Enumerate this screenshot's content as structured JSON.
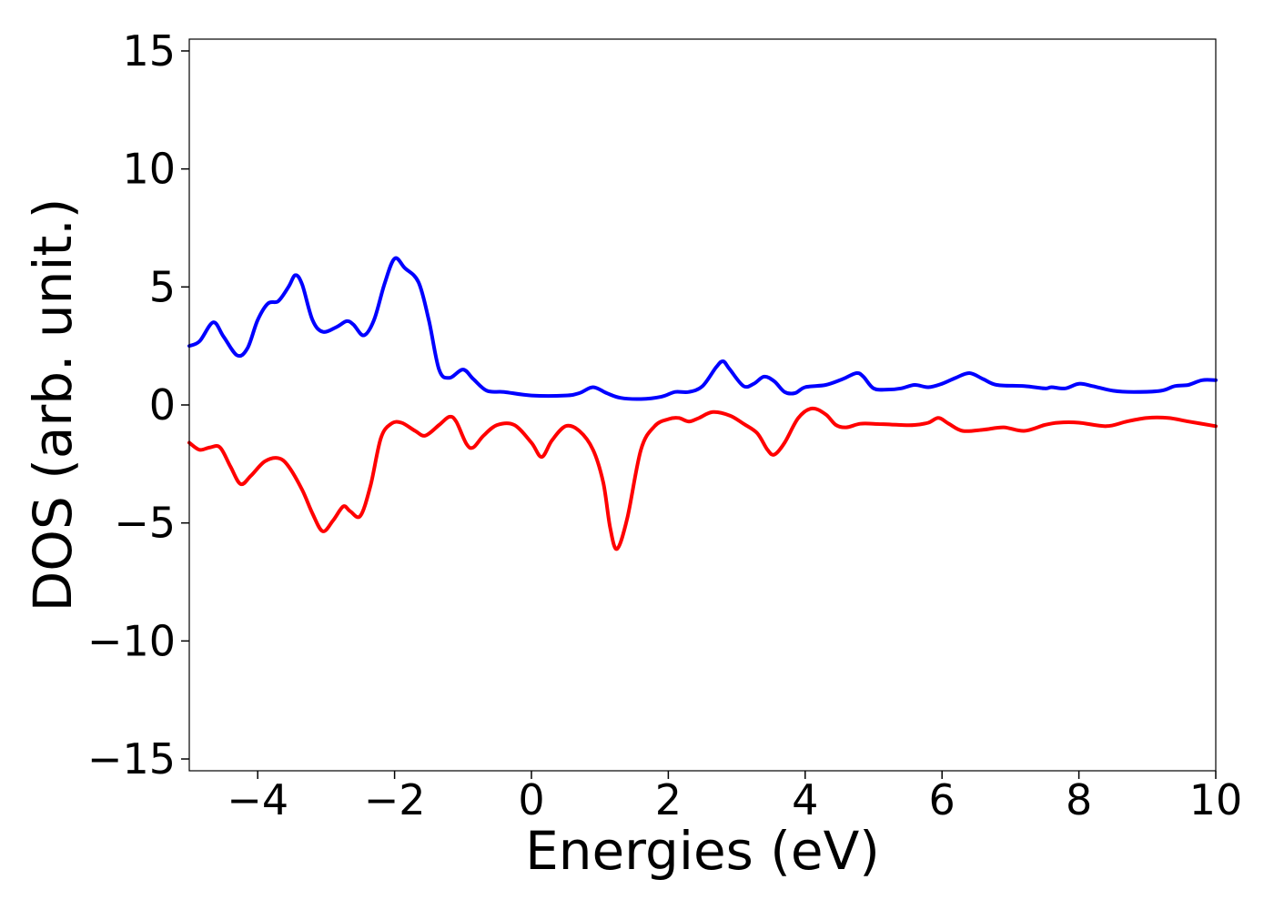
{
  "chart_data": {
    "type": "line",
    "title": "",
    "xlabel": "Energies (eV)",
    "ylabel": "DOS (arb. unit.)",
    "xlim": [
      -5,
      10
    ],
    "ylim": [
      -15.5,
      15.5
    ],
    "xticks": [
      -4,
      -2,
      0,
      2,
      4,
      6,
      8,
      10
    ],
    "yticks": [
      -15,
      -10,
      -5,
      0,
      5,
      10,
      15
    ],
    "grid": false,
    "legend": "none",
    "series": [
      {
        "color": "#0000ff",
        "points": [
          [
            -5.0,
            2.5
          ],
          [
            -4.85,
            2.7
          ],
          [
            -4.65,
            3.5
          ],
          [
            -4.5,
            2.9
          ],
          [
            -4.3,
            2.1
          ],
          [
            -4.15,
            2.4
          ],
          [
            -4.0,
            3.6
          ],
          [
            -3.85,
            4.3
          ],
          [
            -3.7,
            4.4
          ],
          [
            -3.55,
            5.0
          ],
          [
            -3.45,
            5.5
          ],
          [
            -3.35,
            5.1
          ],
          [
            -3.2,
            3.6
          ],
          [
            -3.05,
            3.1
          ],
          [
            -2.85,
            3.3
          ],
          [
            -2.7,
            3.55
          ],
          [
            -2.6,
            3.4
          ],
          [
            -2.45,
            2.95
          ],
          [
            -2.3,
            3.6
          ],
          [
            -2.15,
            5.1
          ],
          [
            -2.0,
            6.2
          ],
          [
            -1.85,
            5.8
          ],
          [
            -1.65,
            5.2
          ],
          [
            -1.5,
            3.6
          ],
          [
            -1.35,
            1.5
          ],
          [
            -1.2,
            1.15
          ],
          [
            -1.0,
            1.5
          ],
          [
            -0.85,
            1.1
          ],
          [
            -0.65,
            0.6
          ],
          [
            -0.4,
            0.55
          ],
          [
            0.0,
            0.4
          ],
          [
            0.5,
            0.4
          ],
          [
            0.7,
            0.5
          ],
          [
            0.9,
            0.75
          ],
          [
            1.1,
            0.5
          ],
          [
            1.3,
            0.3
          ],
          [
            1.6,
            0.25
          ],
          [
            1.9,
            0.35
          ],
          [
            2.1,
            0.55
          ],
          [
            2.3,
            0.55
          ],
          [
            2.5,
            0.8
          ],
          [
            2.7,
            1.6
          ],
          [
            2.8,
            1.85
          ],
          [
            2.9,
            1.5
          ],
          [
            3.1,
            0.8
          ],
          [
            3.25,
            0.9
          ],
          [
            3.4,
            1.2
          ],
          [
            3.55,
            1.0
          ],
          [
            3.7,
            0.55
          ],
          [
            3.85,
            0.5
          ],
          [
            4.0,
            0.75
          ],
          [
            4.3,
            0.85
          ],
          [
            4.55,
            1.1
          ],
          [
            4.75,
            1.35
          ],
          [
            4.85,
            1.2
          ],
          [
            5.0,
            0.7
          ],
          [
            5.2,
            0.65
          ],
          [
            5.4,
            0.7
          ],
          [
            5.6,
            0.85
          ],
          [
            5.8,
            0.75
          ],
          [
            6.0,
            0.9
          ],
          [
            6.2,
            1.15
          ],
          [
            6.4,
            1.35
          ],
          [
            6.6,
            1.1
          ],
          [
            6.8,
            0.85
          ],
          [
            7.2,
            0.8
          ],
          [
            7.5,
            0.7
          ],
          [
            7.6,
            0.75
          ],
          [
            7.8,
            0.7
          ],
          [
            8.0,
            0.9
          ],
          [
            8.2,
            0.8
          ],
          [
            8.5,
            0.6
          ],
          [
            8.8,
            0.55
          ],
          [
            9.2,
            0.6
          ],
          [
            9.4,
            0.8
          ],
          [
            9.6,
            0.85
          ],
          [
            9.8,
            1.05
          ],
          [
            10.0,
            1.05
          ]
        ]
      },
      {
        "color": "#ff0000",
        "points": [
          [
            -5.0,
            -1.6
          ],
          [
            -4.85,
            -1.9
          ],
          [
            -4.7,
            -1.8
          ],
          [
            -4.55,
            -1.8
          ],
          [
            -4.4,
            -2.6
          ],
          [
            -4.25,
            -3.35
          ],
          [
            -4.1,
            -3.0
          ],
          [
            -3.9,
            -2.4
          ],
          [
            -3.7,
            -2.25
          ],
          [
            -3.55,
            -2.6
          ],
          [
            -3.35,
            -3.6
          ],
          [
            -3.2,
            -4.6
          ],
          [
            -3.05,
            -5.35
          ],
          [
            -2.9,
            -4.9
          ],
          [
            -2.75,
            -4.3
          ],
          [
            -2.65,
            -4.5
          ],
          [
            -2.5,
            -4.7
          ],
          [
            -2.35,
            -3.4
          ],
          [
            -2.2,
            -1.4
          ],
          [
            -2.05,
            -0.8
          ],
          [
            -1.9,
            -0.75
          ],
          [
            -1.7,
            -1.1
          ],
          [
            -1.55,
            -1.3
          ],
          [
            -1.35,
            -0.85
          ],
          [
            -1.2,
            -0.5
          ],
          [
            -1.1,
            -0.7
          ],
          [
            -0.95,
            -1.65
          ],
          [
            -0.85,
            -1.8
          ],
          [
            -0.7,
            -1.3
          ],
          [
            -0.5,
            -0.85
          ],
          [
            -0.25,
            -0.85
          ],
          [
            0.0,
            -1.6
          ],
          [
            0.15,
            -2.2
          ],
          [
            0.3,
            -1.5
          ],
          [
            0.5,
            -0.9
          ],
          [
            0.7,
            -1.1
          ],
          [
            0.9,
            -1.9
          ],
          [
            1.05,
            -3.3
          ],
          [
            1.15,
            -5.2
          ],
          [
            1.25,
            -6.1
          ],
          [
            1.4,
            -4.8
          ],
          [
            1.6,
            -1.9
          ],
          [
            1.8,
            -0.9
          ],
          [
            2.0,
            -0.6
          ],
          [
            2.15,
            -0.55
          ],
          [
            2.3,
            -0.7
          ],
          [
            2.45,
            -0.55
          ],
          [
            2.65,
            -0.3
          ],
          [
            2.9,
            -0.45
          ],
          [
            3.1,
            -0.8
          ],
          [
            3.3,
            -1.2
          ],
          [
            3.45,
            -1.9
          ],
          [
            3.55,
            -2.1
          ],
          [
            3.7,
            -1.6
          ],
          [
            3.9,
            -0.55
          ],
          [
            4.1,
            -0.15
          ],
          [
            4.3,
            -0.4
          ],
          [
            4.45,
            -0.85
          ],
          [
            4.6,
            -0.95
          ],
          [
            4.8,
            -0.8
          ],
          [
            5.0,
            -0.8
          ],
          [
            5.4,
            -0.85
          ],
          [
            5.6,
            -0.85
          ],
          [
            5.8,
            -0.75
          ],
          [
            5.95,
            -0.55
          ],
          [
            6.1,
            -0.8
          ],
          [
            6.3,
            -1.1
          ],
          [
            6.6,
            -1.05
          ],
          [
            6.9,
            -0.95
          ],
          [
            7.2,
            -1.1
          ],
          [
            7.5,
            -0.85
          ],
          [
            7.7,
            -0.75
          ],
          [
            8.0,
            -0.75
          ],
          [
            8.4,
            -0.9
          ],
          [
            8.7,
            -0.7
          ],
          [
            9.0,
            -0.55
          ],
          [
            9.3,
            -0.55
          ],
          [
            9.6,
            -0.7
          ],
          [
            10.0,
            -0.9
          ]
        ]
      }
    ]
  }
}
